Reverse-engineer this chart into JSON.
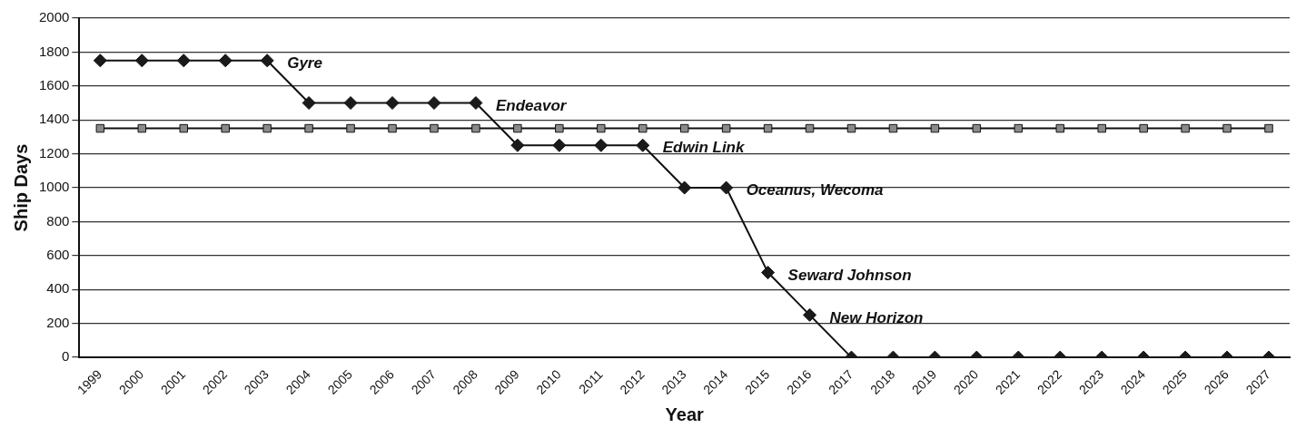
{
  "chart_data": {
    "type": "line",
    "xlabel": "Year",
    "ylabel": "Ship Days",
    "categories": [
      "1999",
      "2000",
      "2001",
      "2002",
      "2003",
      "2004",
      "2005",
      "2006",
      "2007",
      "2008",
      "2009",
      "2010",
      "2011",
      "2012",
      "2013",
      "2014",
      "2015",
      "2016",
      "2017",
      "2018",
      "2019",
      "2020",
      "2021",
      "2022",
      "2023",
      "2024",
      "2025",
      "2026",
      "2027"
    ],
    "series": [
      {
        "color": "#1a1a1a",
        "marker": "diamond",
        "values": [
          1750,
          1750,
          1750,
          1750,
          1750,
          1500,
          1500,
          1500,
          1500,
          1500,
          1250,
          1250,
          1250,
          1250,
          1000,
          1000,
          500,
          250,
          0,
          0,
          0,
          0,
          0,
          0,
          0,
          0,
          0,
          0,
          0
        ]
      },
      {
        "color": "#8a8a8a",
        "marker": "square",
        "values": [
          1350,
          1350,
          1350,
          1350,
          1350,
          1350,
          1350,
          1350,
          1350,
          1350,
          1350,
          1350,
          1350,
          1350,
          1350,
          1350,
          1350,
          1350,
          1350,
          1350,
          1350,
          1350,
          1350,
          1350,
          1350,
          1350,
          1350,
          1350,
          1350
        ]
      }
    ],
    "ylim": [
      0,
      2000
    ],
    "yticks": [
      0,
      200,
      400,
      600,
      800,
      1000,
      1200,
      1400,
      1600,
      1800,
      2000
    ],
    "grid": "y",
    "legend": false,
    "line_style": "solid",
    "annotations": [
      {
        "text": "Gyre",
        "x": "2003",
        "y": 1750
      },
      {
        "text": "Endeavor",
        "x": "2008",
        "y": 1500
      },
      {
        "text": "Edwin Link",
        "x": "2012",
        "y": 1250
      },
      {
        "text": "Oceanus, Wecoma",
        "x": "2014",
        "y": 1000
      },
      {
        "text": "Seward Johnson",
        "x": "2015",
        "y": 500
      },
      {
        "text": "New Horizon",
        "x": "2016",
        "y": 250
      }
    ]
  }
}
